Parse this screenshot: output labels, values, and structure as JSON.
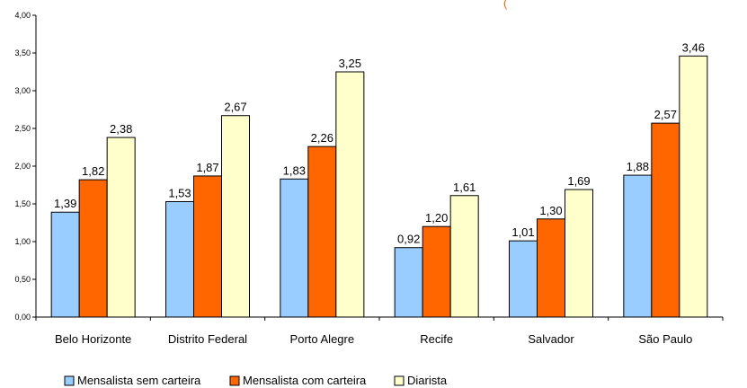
{
  "chart_data": {
    "type": "bar",
    "title": "(",
    "categories": [
      "Belo Horizonte",
      "Distrito Federal",
      "Porto Alegre",
      "Recife",
      "Salvador",
      "São Paulo"
    ],
    "series": [
      {
        "name": "Mensalista sem carteira",
        "color": "#99ccff",
        "values": [
          1.39,
          1.53,
          1.83,
          0.92,
          1.01,
          1.88
        ],
        "labels": [
          "1,39",
          "1,53",
          "1,83",
          "0,92",
          "1,01",
          "1,88"
        ]
      },
      {
        "name": "Mensalista com carteira",
        "color": "#ff6600",
        "values": [
          1.82,
          1.87,
          2.26,
          1.2,
          1.3,
          2.57
        ],
        "labels": [
          "1,82",
          "1,87",
          "2,26",
          "1,20",
          "1,30",
          "2,57"
        ]
      },
      {
        "name": "Diarista",
        "color": "#ffffcc",
        "values": [
          2.38,
          2.67,
          3.25,
          1.61,
          1.69,
          3.46
        ],
        "labels": [
          "2,38",
          "2,67",
          "3,25",
          "1,61",
          "1,69",
          "3,46"
        ]
      }
    ],
    "ylim": [
      0,
      4
    ],
    "yticks": [
      0,
      0.5,
      1,
      1.5,
      2,
      2.5,
      3,
      3.5,
      4
    ],
    "ytick_labels": [
      "0,00",
      "0,50",
      "1,00",
      "1,50",
      "2,00",
      "2,50",
      "3,00",
      "3,50",
      "4,00"
    ],
    "xlabel": "",
    "ylabel": "",
    "grid": false,
    "legend_position": "bottom"
  }
}
